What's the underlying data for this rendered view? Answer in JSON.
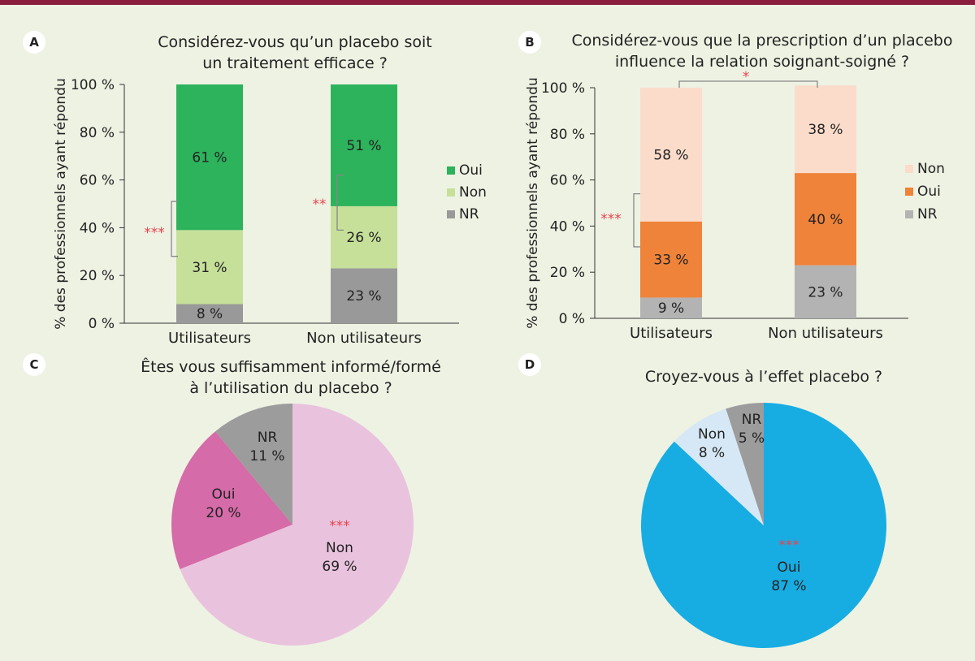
{
  "panels": {
    "A": {
      "label": "A",
      "title": [
        "Considérez-vous qu’un placebo soit",
        "un traitement efficace ?"
      ]
    },
    "B": {
      "label": "B",
      "title": [
        "Considérez-vous que la prescription d’un placebo",
        "influence la relation soignant-soigné ?"
      ]
    },
    "C": {
      "label": "C",
      "title": [
        "Êtes vous suffisamment informé/formé",
        "à l’utilisation du placebo ?"
      ]
    },
    "D": {
      "label": "D",
      "title": [
        "Croyez-vous à l’effet placebo ?"
      ]
    }
  },
  "chart_data": [
    {
      "panel": "A",
      "type": "bar",
      "stacked": true,
      "ylabel": "% des professionnels ayant répondu",
      "yticks": [
        "0 %",
        "20 %",
        "40 %",
        "60 %",
        "80 %",
        "100 %"
      ],
      "ylim": [
        0,
        100
      ],
      "categories": [
        "Utilisateurs",
        "Non utilisateurs"
      ],
      "series": [
        {
          "name": "NR",
          "values": [
            8,
            23
          ],
          "labels": [
            "8 %",
            "23 %"
          ],
          "color": "#999999"
        },
        {
          "name": "Non",
          "values": [
            31,
            26
          ],
          "labels": [
            "31 %",
            "26 %"
          ],
          "color": "#c6e09a"
        },
        {
          "name": "Oui",
          "values": [
            61,
            51
          ],
          "labels": [
            "61 %",
            "51 %"
          ],
          "color": "#2db35c"
        }
      ],
      "legend": {
        "placement": "right",
        "order": [
          "Oui",
          "Non",
          "NR"
        ]
      },
      "significance": [
        {
          "category": "Utilisateurs",
          "between": [
            "Non",
            "Oui"
          ],
          "mark": "***"
        },
        {
          "category": "Non utilisateurs",
          "between": [
            "Non",
            "Oui"
          ],
          "mark": "**"
        }
      ]
    },
    {
      "panel": "B",
      "type": "bar",
      "stacked": true,
      "ylabel": "% des professionnels ayant répondu",
      "yticks": [
        "0 %",
        "20 %",
        "40 %",
        "60 %",
        "80 %",
        "100 %"
      ],
      "ylim": [
        0,
        100
      ],
      "categories": [
        "Utilisateurs",
        "Non utilisateurs"
      ],
      "series": [
        {
          "name": "NR",
          "values": [
            9,
            23
          ],
          "labels": [
            "9 %",
            "23 %"
          ],
          "color": "#b3b3b3"
        },
        {
          "name": "Oui",
          "values": [
            33,
            40
          ],
          "labels": [
            "33 %",
            "40 %"
          ],
          "color": "#ef833a"
        },
        {
          "name": "Non",
          "values": [
            58,
            38
          ],
          "labels": [
            "58 %",
            "38 %"
          ],
          "color": "#fbdccb"
        }
      ],
      "legend": {
        "placement": "right",
        "order": [
          "Non",
          "Oui",
          "NR"
        ]
      },
      "significance": [
        {
          "category": "Utilisateurs",
          "between": [
            "Oui",
            "Non"
          ],
          "mark": "***"
        },
        {
          "between_categories": [
            "Utilisateurs",
            "Non utilisateurs"
          ],
          "mark": "*"
        }
      ]
    },
    {
      "panel": "C",
      "type": "pie",
      "slices": [
        {
          "name": "Non",
          "value": 69,
          "label": "69 %",
          "color": "#e9c3de",
          "mark": "***"
        },
        {
          "name": "Oui",
          "value": 20,
          "label": "20 %",
          "color": "#d56ba8"
        },
        {
          "name": "NR",
          "value": 11,
          "label": "11 %",
          "color": "#9c9c9c"
        }
      ]
    },
    {
      "panel": "D",
      "type": "pie",
      "slices": [
        {
          "name": "Oui",
          "value": 87,
          "label": "87 %",
          "color": "#17ade3",
          "mark": "***"
        },
        {
          "name": "Non",
          "value": 8,
          "label": "8 %",
          "color": "#d6e8f5"
        },
        {
          "name": "NR",
          "value": 5,
          "label": "5 %",
          "color": "#9c9c9c"
        }
      ]
    }
  ]
}
